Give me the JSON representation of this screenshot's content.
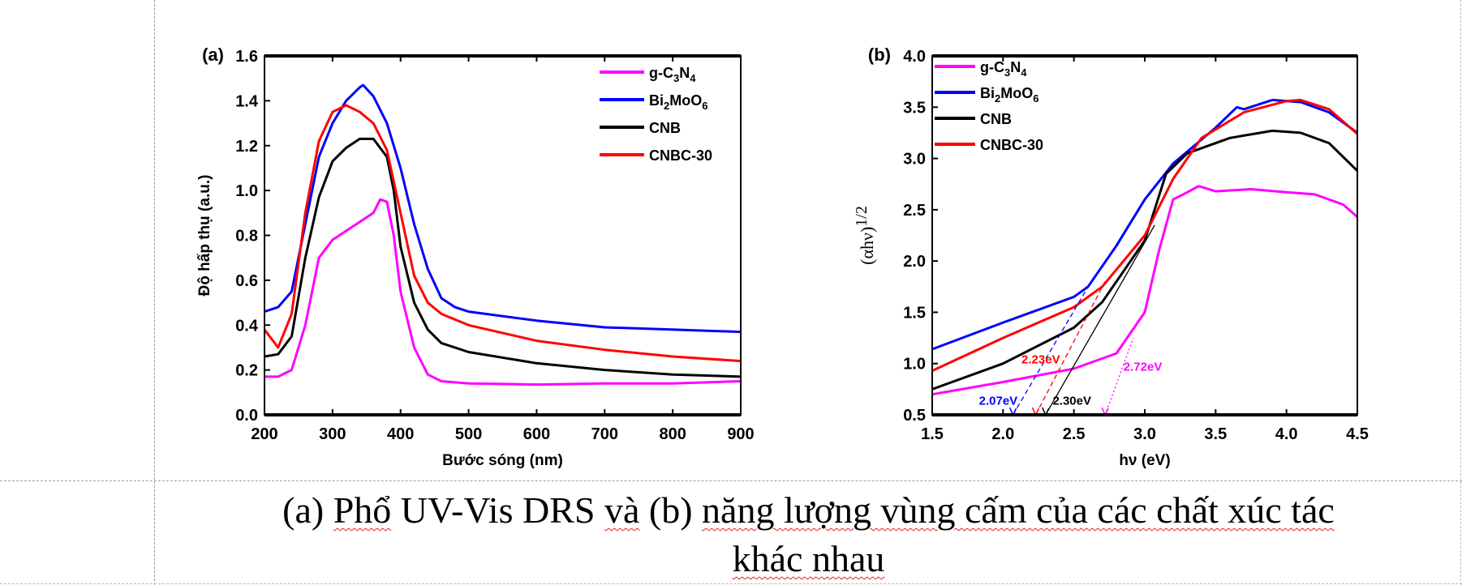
{
  "chart_data": [
    {
      "type": "line",
      "panel_label": "(a)",
      "xlabel": "Bước sóng (nm)",
      "ylabel": "Độ hấp thụ (a.u.)",
      "xlim": [
        200,
        900
      ],
      "ylim": [
        0.0,
        1.6
      ],
      "xticks": [
        "200",
        "300",
        "400",
        "500",
        "600",
        "700",
        "800",
        "900"
      ],
      "yticks": [
        "0.0",
        "0.2",
        "0.4",
        "0.6",
        "0.8",
        "1.0",
        "1.2",
        "1.4",
        "1.6"
      ],
      "grid": false,
      "legend": "top-right",
      "series": [
        {
          "name_parts": [
            "g-C",
            "3",
            "N",
            "4"
          ],
          "color": "#ff00ff",
          "x": [
            200,
            220,
            240,
            260,
            280,
            300,
            320,
            340,
            360,
            370,
            380,
            390,
            400,
            420,
            440,
            460,
            500,
            600,
            700,
            800,
            900
          ],
          "y": [
            0.17,
            0.17,
            0.2,
            0.4,
            0.7,
            0.78,
            0.82,
            0.86,
            0.9,
            0.96,
            0.95,
            0.8,
            0.55,
            0.3,
            0.18,
            0.15,
            0.14,
            0.135,
            0.14,
            0.14,
            0.15
          ]
        },
        {
          "name_parts": [
            "Bi",
            "2",
            "MoO",
            "6"
          ],
          "color": "#0000ff",
          "x": [
            200,
            220,
            240,
            260,
            280,
            300,
            320,
            340,
            345,
            360,
            380,
            400,
            420,
            440,
            460,
            480,
            500,
            600,
            700,
            800,
            900
          ],
          "y": [
            0.46,
            0.48,
            0.55,
            0.85,
            1.15,
            1.3,
            1.4,
            1.46,
            1.47,
            1.42,
            1.3,
            1.1,
            0.85,
            0.65,
            0.52,
            0.48,
            0.46,
            0.42,
            0.39,
            0.38,
            0.37
          ]
        },
        {
          "name_parts": [
            "CNB"
          ],
          "color": "#000000",
          "x": [
            200,
            220,
            240,
            260,
            280,
            300,
            320,
            340,
            360,
            380,
            390,
            400,
            420,
            440,
            460,
            500,
            600,
            700,
            800,
            900
          ],
          "y": [
            0.26,
            0.27,
            0.35,
            0.7,
            0.97,
            1.13,
            1.19,
            1.23,
            1.23,
            1.15,
            1.0,
            0.75,
            0.5,
            0.38,
            0.32,
            0.28,
            0.23,
            0.2,
            0.18,
            0.17
          ]
        },
        {
          "name_parts": [
            "CNBC-30"
          ],
          "color": "#ff0000",
          "x": [
            200,
            220,
            240,
            260,
            280,
            300,
            320,
            340,
            360,
            380,
            400,
            420,
            440,
            460,
            500,
            600,
            700,
            800,
            900
          ],
          "y": [
            0.38,
            0.3,
            0.45,
            0.9,
            1.22,
            1.35,
            1.38,
            1.35,
            1.3,
            1.18,
            0.9,
            0.62,
            0.5,
            0.45,
            0.4,
            0.33,
            0.29,
            0.26,
            0.24
          ]
        }
      ]
    },
    {
      "type": "line",
      "panel_label": "(b)",
      "xlabel": "hν (eV)",
      "ylabel": "(αhν)",
      "ylabel_sup": "1/2",
      "xlim": [
        1.5,
        4.5
      ],
      "ylim": [
        0.5,
        4.0
      ],
      "xticks": [
        "1.5",
        "2.0",
        "2.5",
        "3.0",
        "3.5",
        "4.0",
        "4.5"
      ],
      "yticks": [
        "0.5",
        "1.0",
        "1.5",
        "2.0",
        "2.5",
        "3.0",
        "3.5",
        "4.0"
      ],
      "grid": false,
      "legend": "top-left",
      "series": [
        {
          "name_parts": [
            "g-C",
            "3",
            "N",
            "4"
          ],
          "color": "#ff00ff",
          "x": [
            1.5,
            2.0,
            2.5,
            2.8,
            3.0,
            3.1,
            3.2,
            3.3,
            3.38,
            3.5,
            3.75,
            4.0,
            4.2,
            4.4,
            4.5
          ],
          "y": [
            0.7,
            0.82,
            0.95,
            1.1,
            1.5,
            2.1,
            2.6,
            2.67,
            2.73,
            2.68,
            2.7,
            2.67,
            2.65,
            2.55,
            2.43
          ]
        },
        {
          "name_parts": [
            "Bi",
            "2",
            "MoO",
            "6"
          ],
          "color": "#0000ff",
          "x": [
            1.5,
            2.0,
            2.5,
            2.6,
            2.8,
            3.0,
            3.2,
            3.5,
            3.65,
            3.7,
            3.9,
            4.1,
            4.3,
            4.5
          ],
          "y": [
            1.14,
            1.4,
            1.65,
            1.75,
            2.15,
            2.6,
            2.95,
            3.3,
            3.5,
            3.48,
            3.57,
            3.55,
            3.45,
            3.25
          ]
        },
        {
          "name_parts": [
            "CNB"
          ],
          "color": "#000000",
          "x": [
            1.5,
            2.0,
            2.5,
            2.7,
            3.0,
            3.15,
            3.3,
            3.6,
            3.9,
            4.1,
            4.3,
            4.5
          ],
          "y": [
            0.75,
            1.0,
            1.35,
            1.6,
            2.2,
            2.85,
            3.05,
            3.2,
            3.27,
            3.25,
            3.15,
            2.88
          ]
        },
        {
          "name_parts": [
            "CNBC-30"
          ],
          "color": "#ff0000",
          "x": [
            1.5,
            2.0,
            2.5,
            2.7,
            3.0,
            3.2,
            3.4,
            3.7,
            4.0,
            4.1,
            4.3,
            4.5
          ],
          "y": [
            0.93,
            1.25,
            1.55,
            1.75,
            2.25,
            2.8,
            3.2,
            3.45,
            3.56,
            3.57,
            3.48,
            3.24
          ]
        }
      ],
      "band_gaps": [
        {
          "label": "2.07eV",
          "value": 2.07,
          "color": "#0000ff",
          "style": "dashed",
          "to": [
            2.6,
            1.75
          ],
          "label_at": [
            1.83,
            0.6
          ]
        },
        {
          "label": "2.23eV",
          "value": 2.23,
          "color": "#ff0000",
          "style": "dashed",
          "to": [
            2.72,
            1.8
          ],
          "label_at": [
            2.13,
            1.0
          ]
        },
        {
          "label": "2.30eV",
          "value": 2.3,
          "color": "#000000",
          "style": "solid",
          "to": [
            3.07,
            2.35
          ],
          "label_at": [
            2.35,
            0.6
          ]
        },
        {
          "label": "2.72eV",
          "value": 2.72,
          "color": "#ff00ff",
          "style": "dotted",
          "to": [
            2.92,
            1.25
          ],
          "label_at": [
            2.85,
            0.93
          ]
        }
      ]
    }
  ],
  "caption": {
    "line1": [
      {
        "text": "(a) ",
        "flag": false
      },
      {
        "text": "Phổ",
        "flag": true
      },
      {
        "text": " UV-Vis DRS ",
        "flag": false
      },
      {
        "text": "và",
        "flag": true
      },
      {
        "text": " (b) ",
        "flag": false
      },
      {
        "text": "năng lượng vùng cấm của các chất xúc tác",
        "flag": true
      }
    ],
    "line2": [
      {
        "text": "khác nhau",
        "flag": true
      }
    ]
  }
}
